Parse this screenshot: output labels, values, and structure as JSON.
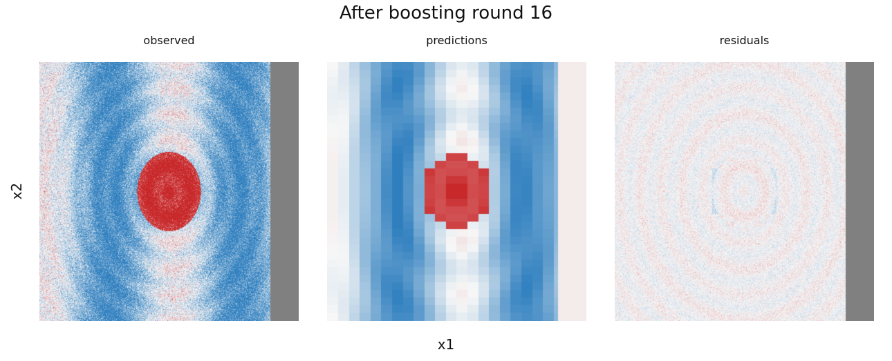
{
  "figure": {
    "title": "After boosting round 16",
    "xlabel": "x1",
    "ylabel": "x2"
  },
  "colors": {
    "positive": "#c8282a",
    "negative": "#2f7fbf",
    "neutral": "#f7f7f7",
    "missing_band": "#808080"
  },
  "chart_data": [
    {
      "type": "heatmap",
      "title": "observed",
      "colormap": "diverging red-white-blue",
      "pattern": "central red disk, concentric rings, two vertical blue bands, noisy",
      "missing_band": "right edge"
    },
    {
      "type": "heatmap",
      "title": "predictions",
      "colormap": "diverging red-white-blue",
      "pattern": "central red disk, two vertical blue bands, blocky, no noise",
      "missing_band": "none"
    },
    {
      "type": "heatmap",
      "title": "residuals",
      "colormap": "diverging red-white-blue",
      "pattern": "faint concentric rings, low-amplitude noise",
      "missing_band": "right edge"
    }
  ]
}
